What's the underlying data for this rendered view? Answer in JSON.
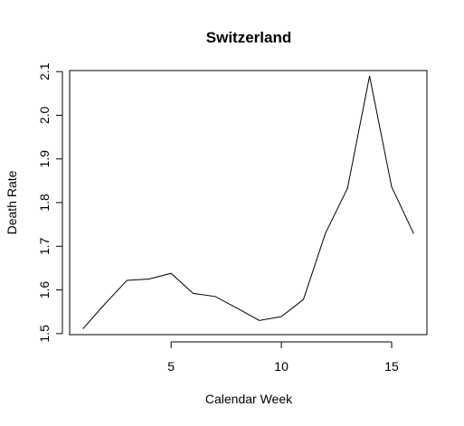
{
  "chart_data": {
    "type": "line",
    "title": "Switzerland",
    "xlabel": "Calendar Week",
    "ylabel": "Death Rate",
    "x": [
      1,
      2,
      3,
      4,
      5,
      6,
      7,
      8,
      9,
      10,
      11,
      12,
      13,
      14,
      15,
      16
    ],
    "values": [
      1.511,
      1.568,
      1.622,
      1.625,
      1.638,
      1.592,
      1.585,
      1.558,
      1.53,
      1.539,
      1.578,
      1.73,
      1.833,
      2.09,
      1.836,
      1.729
    ],
    "xlim": [
      0.4,
      16.6
    ],
    "ylim": [
      1.4976,
      2.1024
    ],
    "xticks": [
      "5",
      "10",
      "15"
    ],
    "yticks": [
      "1.5",
      "1.6",
      "1.7",
      "1.8",
      "1.9",
      "2.0",
      "2.1"
    ],
    "grid": false,
    "line_color": "#000000"
  }
}
